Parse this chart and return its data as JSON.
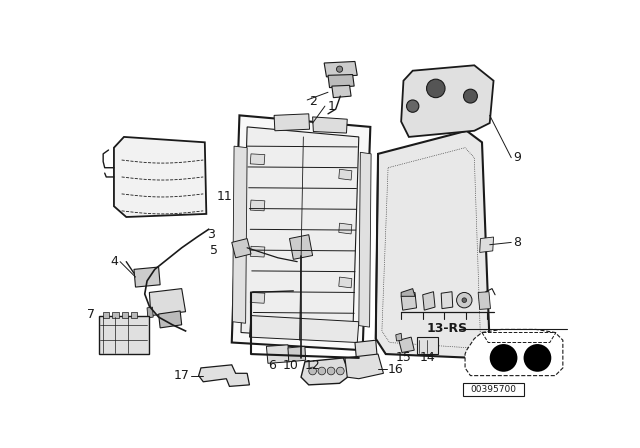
{
  "bg_color": "#ffffff",
  "line_color": "#1a1a1a",
  "text_color": "#1a1a1a",
  "diagram_number": "00395700",
  "label_fs": 9,
  "label_bold_fs": 9
}
